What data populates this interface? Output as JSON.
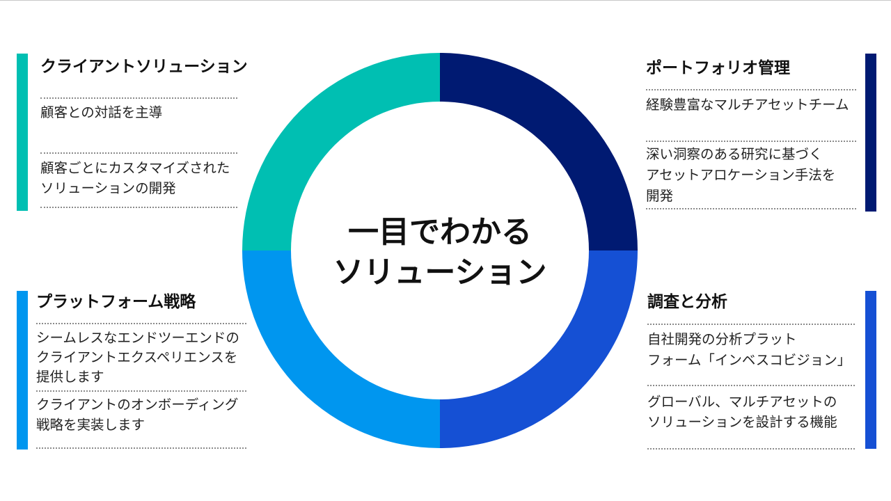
{
  "center": {
    "line1": "一目でわかる",
    "line2": "ソリューション"
  },
  "colors": {
    "teal": "#00bfb2",
    "navy": "#001a72",
    "royal": "#1550d4",
    "sky": "#0096ef"
  },
  "quadrants": {
    "client": {
      "title": "クライアントソリューション",
      "items": [
        "顧客との対話を主導",
        "顧客ごとにカスタマイズされた",
        "ソリューションの開発"
      ]
    },
    "portfolio": {
      "title": "ポートフォリオ管理",
      "items": [
        "経験豊富なマルチアセットチーム",
        "深い洞察のある研究に基づく",
        "アセットアロケーション手法を",
        "開発"
      ]
    },
    "platform": {
      "title": "プラットフォーム戦略",
      "items": [
        "シームレスなエンドツーエンドの",
        "クライアントエクスペリエンスを",
        "提供します",
        "クライアントのオンボーディング",
        "戦略を実装します"
      ]
    },
    "research": {
      "title": "調査と分析",
      "items": [
        "自社開発の分析プラット",
        "フォーム「インベスコビジョン」",
        "グローバル、マルチアセットの",
        "ソリューションを設計する機能"
      ]
    }
  }
}
